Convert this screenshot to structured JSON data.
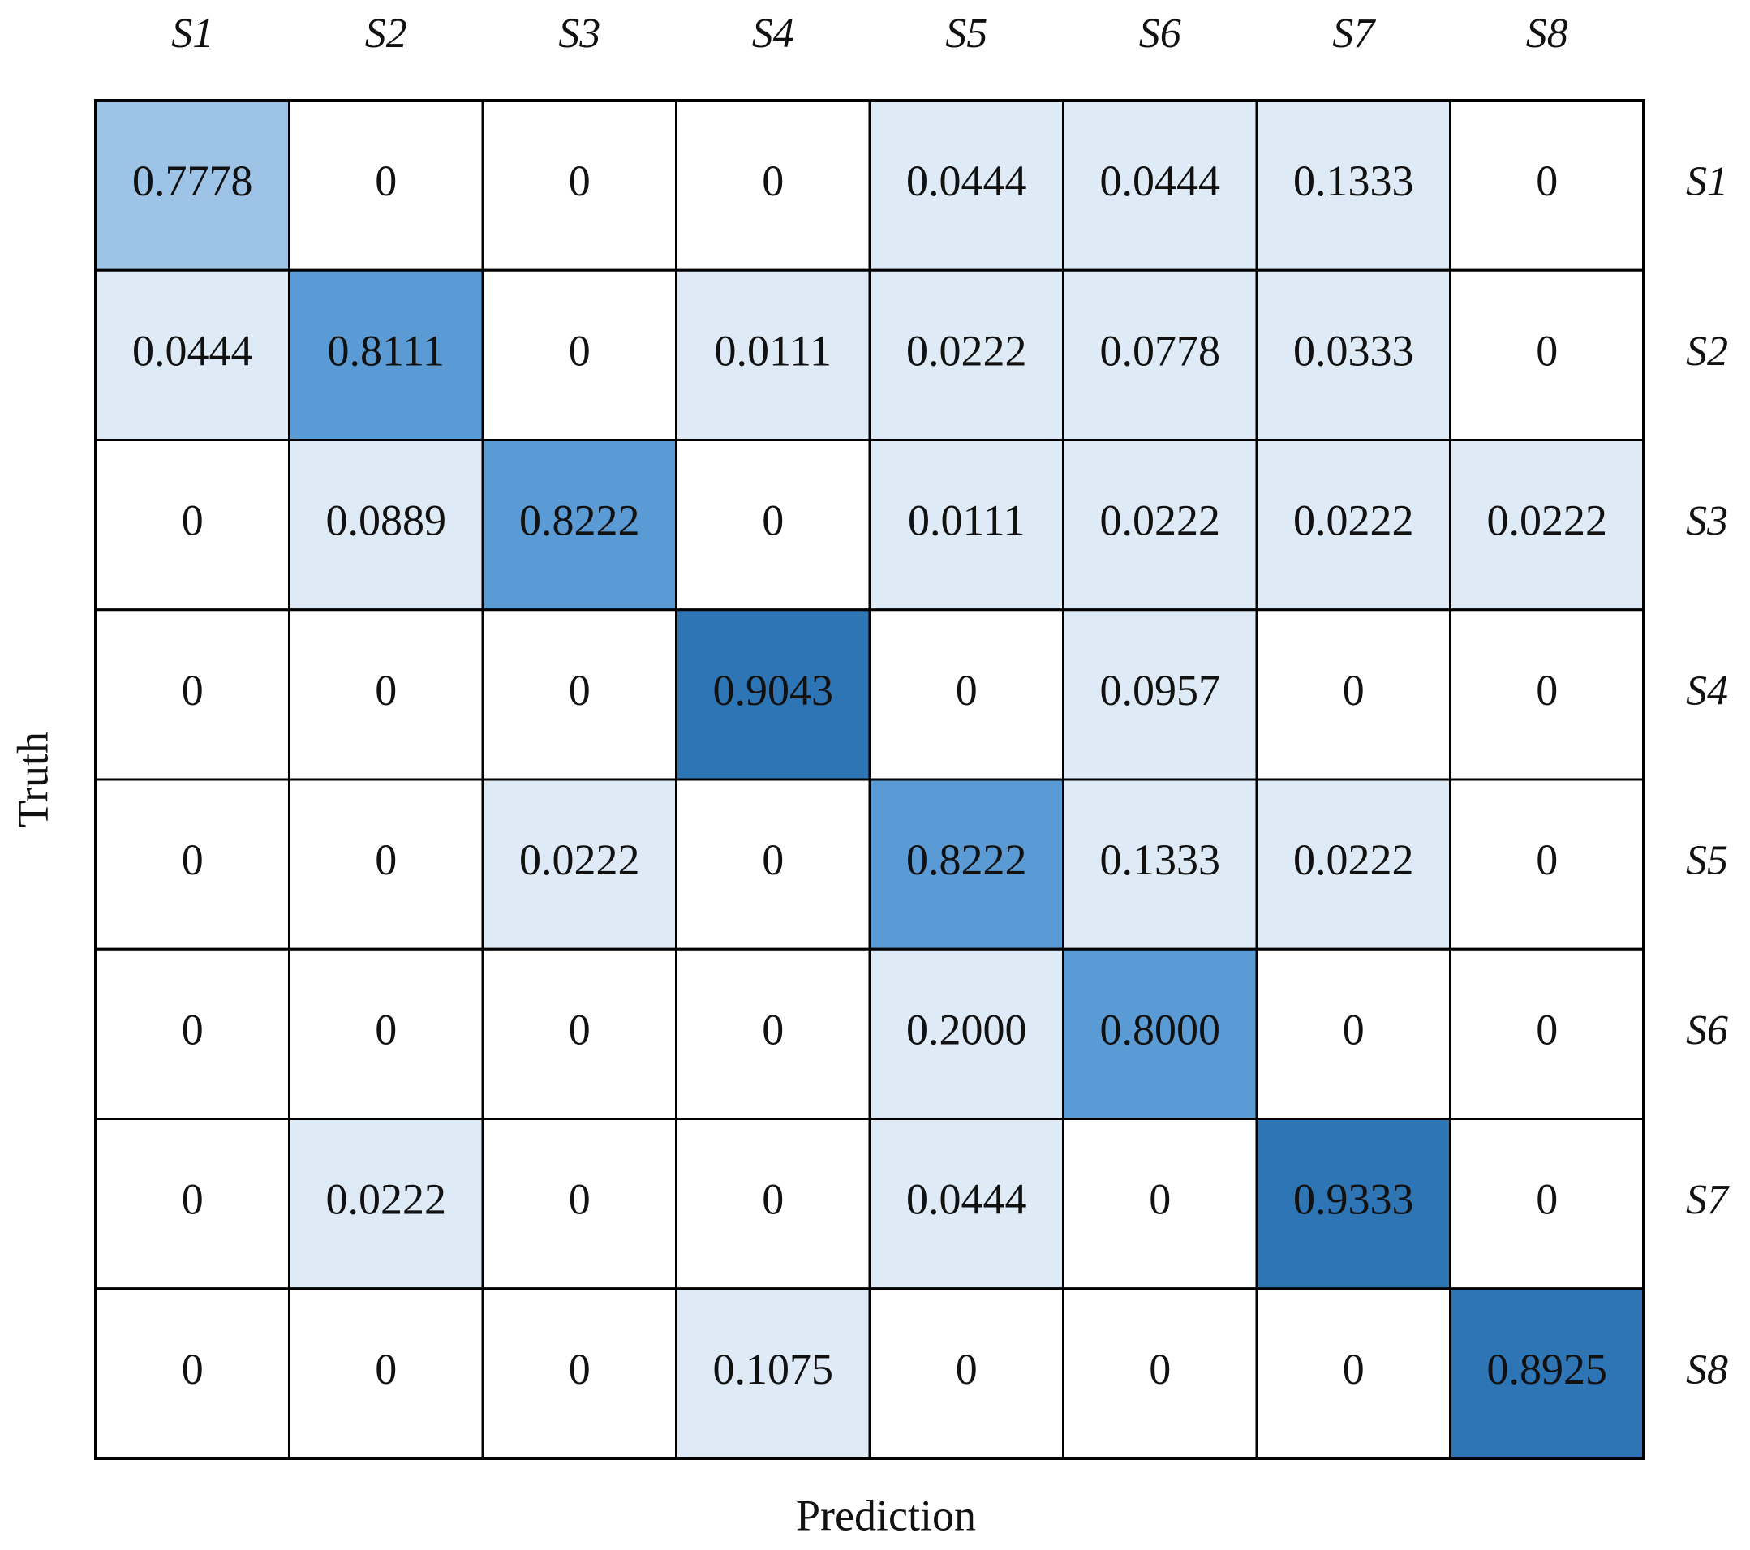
{
  "chart_data": {
    "type": "heatmap",
    "x_label": "Prediction",
    "y_label": "Truth",
    "x_categories": [
      "S1",
      "S2",
      "S3",
      "S4",
      "S5",
      "S6",
      "S7",
      "S8"
    ],
    "y_categories": [
      "S1",
      "S2",
      "S3",
      "S4",
      "S5",
      "S6",
      "S7",
      "S8"
    ],
    "values": [
      [
        0.7778,
        0,
        0,
        0,
        0.0444,
        0.0444,
        0.1333,
        0
      ],
      [
        0.0444,
        0.8111,
        0,
        0.0111,
        0.0222,
        0.0778,
        0.0333,
        0
      ],
      [
        0,
        0.0889,
        0.8222,
        0,
        0.0111,
        0.0222,
        0.0222,
        0.0222
      ],
      [
        0,
        0,
        0,
        0.9043,
        0,
        0.0957,
        0,
        0
      ],
      [
        0,
        0,
        0.0222,
        0,
        0.8222,
        0.1333,
        0.0222,
        0
      ],
      [
        0,
        0,
        0,
        0,
        0.2,
        0.8,
        0,
        0
      ],
      [
        0,
        0.0222,
        0,
        0,
        0.0444,
        0,
        0.9333,
        0
      ],
      [
        0,
        0,
        0,
        0.1075,
        0,
        0,
        0,
        0.8925
      ]
    ],
    "value_labels": [
      [
        "0.7778",
        "0",
        "0",
        "0",
        "0.0444",
        "0.0444",
        "0.1333",
        "0"
      ],
      [
        "0.0444",
        "0.8111",
        "0",
        "0.0111",
        "0.0222",
        "0.0778",
        "0.0333",
        "0"
      ],
      [
        "0",
        "0.0889",
        "0.8222",
        "0",
        "0.0111",
        "0.0222",
        "0.0222",
        "0.0222"
      ],
      [
        "0",
        "0",
        "0",
        "0.9043",
        "0",
        "0.0957",
        "0",
        "0"
      ],
      [
        "0",
        "0",
        "0.0222",
        "0",
        "0.8222",
        "0.1333",
        "0.0222",
        "0"
      ],
      [
        "0",
        "0",
        "0",
        "0",
        "0.2000",
        "0.8000",
        "0",
        "0"
      ],
      [
        "0",
        "0.0222",
        "0",
        "0",
        "0.0444",
        "0",
        "0.9333",
        "0"
      ],
      [
        "0",
        "0",
        "0",
        "0.1075",
        "0",
        "0",
        "0",
        "0.8925"
      ]
    ],
    "colors": [
      [
        "#9dc3e6",
        "#ffffff",
        "#ffffff",
        "#ffffff",
        "#deebf7",
        "#deebf7",
        "#deebf7",
        "#ffffff"
      ],
      [
        "#deebf7",
        "#5b9bd5",
        "#ffffff",
        "#deebf7",
        "#deebf7",
        "#deebf7",
        "#deebf7",
        "#ffffff"
      ],
      [
        "#ffffff",
        "#deebf7",
        "#5b9bd5",
        "#ffffff",
        "#deebf7",
        "#deebf7",
        "#deebf7",
        "#deebf7"
      ],
      [
        "#ffffff",
        "#ffffff",
        "#ffffff",
        "#2e75b6",
        "#ffffff",
        "#deebf7",
        "#ffffff",
        "#ffffff"
      ],
      [
        "#ffffff",
        "#ffffff",
        "#deebf7",
        "#ffffff",
        "#5b9bd5",
        "#deebf7",
        "#deebf7",
        "#ffffff"
      ],
      [
        "#ffffff",
        "#ffffff",
        "#ffffff",
        "#ffffff",
        "#deebf7",
        "#5b9bd5",
        "#ffffff",
        "#ffffff"
      ],
      [
        "#ffffff",
        "#deebf7",
        "#ffffff",
        "#ffffff",
        "#deebf7",
        "#ffffff",
        "#2e75b6",
        "#ffffff"
      ],
      [
        "#ffffff",
        "#ffffff",
        "#ffffff",
        "#deebf7",
        "#ffffff",
        "#ffffff",
        "#ffffff",
        "#2e75b6"
      ]
    ]
  }
}
